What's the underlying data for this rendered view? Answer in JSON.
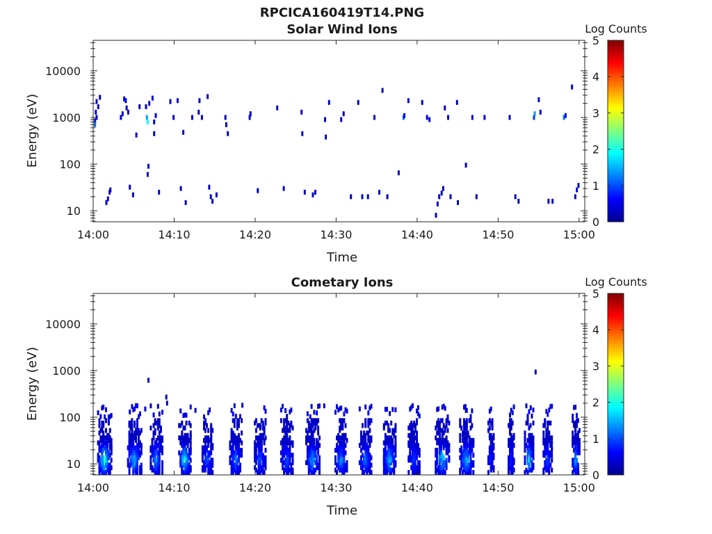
{
  "figure": {
    "title": "RPCICA160419T14.PNG"
  },
  "chart_data": [
    {
      "type": "heatmap",
      "title": "Solar Wind Ions",
      "xlabel": "Time",
      "ylabel": "Energy (eV)",
      "x_ticks": [
        "14:00",
        "14:10",
        "14:20",
        "14:30",
        "14:40",
        "14:50",
        "15:00"
      ],
      "x_range_minutes": [
        0,
        60.7
      ],
      "y_ticks": [
        "10",
        "100",
        "1000",
        "10000"
      ],
      "y_scale": "log",
      "y_range_ev": [
        5.8,
        45000
      ],
      "colorbar": {
        "label": "Log Counts",
        "ticks": [
          "0",
          "1",
          "2",
          "3",
          "4",
          "5"
        ],
        "range": [
          0,
          5
        ],
        "colormap": "jet"
      },
      "cells": [
        [
          0.1,
          850,
          0.7
        ],
        [
          0.1,
          700,
          1.2
        ],
        [
          0.2,
          1300,
          0.5
        ],
        [
          0.3,
          1000,
          0.4
        ],
        [
          0.3,
          2200,
          0.3
        ],
        [
          0.5,
          1700,
          0.4
        ],
        [
          0.7,
          2700,
          0.3
        ],
        [
          1.5,
          15,
          0.3
        ],
        [
          1.7,
          18,
          0.4
        ],
        [
          1.9,
          25,
          0.4
        ],
        [
          2.0,
          28,
          0.3
        ],
        [
          3.3,
          1000,
          0.3
        ],
        [
          3.5,
          1200,
          0.4
        ],
        [
          3.7,
          2500,
          0.5
        ],
        [
          3.9,
          2300,
          0.5
        ],
        [
          4.0,
          1600,
          0.3
        ],
        [
          4.2,
          1300,
          0.3
        ],
        [
          4.4,
          32,
          0.3
        ],
        [
          4.8,
          22,
          0.3
        ],
        [
          5.2,
          420,
          0.3
        ],
        [
          5.6,
          1700,
          0.3
        ],
        [
          6.4,
          1700,
          0.4
        ],
        [
          6.5,
          1000,
          1.4
        ],
        [
          6.6,
          800,
          1.9
        ],
        [
          6.6,
          60,
          0.4
        ],
        [
          6.7,
          90,
          0.3
        ],
        [
          6.8,
          2000,
          0.4
        ],
        [
          7.2,
          2600,
          0.5
        ],
        [
          7.4,
          800,
          0.3
        ],
        [
          7.4,
          450,
          0.3
        ],
        [
          7.6,
          1100,
          0.4
        ],
        [
          8.0,
          25,
          0.3
        ],
        [
          9.4,
          2200,
          0.3
        ],
        [
          9.8,
          1000,
          0.4
        ],
        [
          10.3,
          2300,
          0.4
        ],
        [
          10.7,
          30,
          0.3
        ],
        [
          11.0,
          480,
          0.3
        ],
        [
          11.3,
          15,
          0.3
        ],
        [
          12.1,
          1000,
          0.3
        ],
        [
          12.9,
          1300,
          0.3
        ],
        [
          13.0,
          2300,
          0.3
        ],
        [
          13.3,
          1000,
          0.4
        ],
        [
          14.0,
          2800,
          0.3
        ],
        [
          14.2,
          32,
          0.3
        ],
        [
          14.4,
          20,
          0.3
        ],
        [
          14.6,
          16,
          0.3
        ],
        [
          15.1,
          22,
          0.3
        ],
        [
          16.2,
          1000,
          0.3
        ],
        [
          16.3,
          700,
          0.3
        ],
        [
          16.5,
          450,
          0.3
        ],
        [
          19.2,
          1000,
          0.4
        ],
        [
          19.3,
          1200,
          0.3
        ],
        [
          20.2,
          27,
          0.3
        ],
        [
          22.6,
          1600,
          0.3
        ],
        [
          23.4,
          30,
          0.3
        ],
        [
          25.6,
          1300,
          0.3
        ],
        [
          25.7,
          450,
          0.3
        ],
        [
          26.0,
          25,
          0.3
        ],
        [
          27.0,
          22,
          0.3
        ],
        [
          27.3,
          25,
          0.3
        ],
        [
          28.5,
          900,
          0.4
        ],
        [
          28.6,
          380,
          0.3
        ],
        [
          29.0,
          2100,
          0.3
        ],
        [
          30.5,
          900,
          0.4
        ],
        [
          30.8,
          1200,
          0.3
        ],
        [
          31.7,
          20,
          0.3
        ],
        [
          32.6,
          2100,
          0.3
        ],
        [
          33.1,
          20,
          0.3
        ],
        [
          33.8,
          20,
          0.3
        ],
        [
          34.6,
          1000,
          0.4
        ],
        [
          35.2,
          25,
          0.3
        ],
        [
          35.6,
          3800,
          0.3
        ],
        [
          36.2,
          20,
          0.3
        ],
        [
          37.6,
          65,
          0.3
        ],
        [
          38.2,
          1000,
          1.1
        ],
        [
          38.3,
          1100,
          0.6
        ],
        [
          38.8,
          2300,
          0.3
        ],
        [
          40.5,
          2100,
          0.3
        ],
        [
          41.1,
          1000,
          0.5
        ],
        [
          41.4,
          900,
          0.4
        ],
        [
          42.2,
          8,
          0.3
        ],
        [
          42.4,
          14,
          0.3
        ],
        [
          42.6,
          20,
          0.4
        ],
        [
          42.9,
          24,
          0.3
        ],
        [
          43.1,
          30,
          0.3
        ],
        [
          43.3,
          1600,
          0.3
        ],
        [
          43.7,
          1000,
          0.4
        ],
        [
          44.0,
          20,
          0.3
        ],
        [
          44.8,
          2100,
          0.3
        ],
        [
          44.9,
          15,
          0.3
        ],
        [
          45.9,
          95,
          0.3
        ],
        [
          46.7,
          1000,
          0.3
        ],
        [
          47.2,
          20,
          0.3
        ],
        [
          48.2,
          1000,
          0.4
        ],
        [
          51.3,
          1000,
          0.3
        ],
        [
          52.0,
          20,
          0.3
        ],
        [
          52.4,
          16,
          0.3
        ],
        [
          54.3,
          1000,
          0.9
        ],
        [
          54.4,
          1200,
          1.4
        ],
        [
          54.9,
          2400,
          0.3
        ],
        [
          55.1,
          1300,
          0.3
        ],
        [
          56.1,
          16,
          0.3
        ],
        [
          56.6,
          16,
          0.3
        ],
        [
          58.0,
          1000,
          1.2
        ],
        [
          58.2,
          1100,
          0.5
        ],
        [
          59.0,
          4500,
          0.3
        ],
        [
          59.4,
          20,
          0.3
        ],
        [
          59.6,
          28,
          0.4
        ],
        [
          59.8,
          35,
          0.3
        ]
      ]
    },
    {
      "type": "heatmap",
      "title": "Cometary Ions",
      "xlabel": "Time",
      "ylabel": "Energy (eV)",
      "x_ticks": [
        "14:00",
        "14:10",
        "14:20",
        "14:30",
        "14:40",
        "14:50",
        "15:00"
      ],
      "x_range_minutes": [
        0,
        60.7
      ],
      "y_ticks": [
        "10",
        "100",
        "1000",
        "10000"
      ],
      "y_scale": "log",
      "y_range_ev": [
        5.8,
        45000
      ],
      "colorbar": {
        "label": "Log Counts",
        "ticks": [
          "0",
          "1",
          "2",
          "3",
          "4",
          "5"
        ],
        "range": [
          0,
          5
        ],
        "colormap": "jet"
      },
      "clusters": [
        {
          "t": 1.3,
          "w": 1.8,
          "peak": 2.1
        },
        {
          "t": 5.0,
          "w": 1.8,
          "peak": 1.6
        },
        {
          "t": 7.7,
          "w": 1.6,
          "peak": 1.3
        },
        {
          "t": 11.2,
          "w": 1.6,
          "peak": 2.0
        },
        {
          "t": 14.0,
          "w": 1.4,
          "peak": 1.0
        },
        {
          "t": 17.5,
          "w": 1.6,
          "peak": 1.1
        },
        {
          "t": 20.5,
          "w": 1.5,
          "peak": 0.9
        },
        {
          "t": 23.8,
          "w": 1.6,
          "peak": 0.9
        },
        {
          "t": 27.0,
          "w": 1.8,
          "peak": 1.5
        },
        {
          "t": 30.5,
          "w": 1.6,
          "peak": 1.3
        },
        {
          "t": 33.5,
          "w": 1.6,
          "peak": 1.1
        },
        {
          "t": 36.5,
          "w": 1.6,
          "peak": 1.6
        },
        {
          "t": 39.5,
          "w": 1.5,
          "peak": 0.9
        },
        {
          "t": 43.0,
          "w": 1.8,
          "peak": 1.7
        },
        {
          "t": 46.0,
          "w": 1.8,
          "peak": 1.6
        },
        {
          "t": 49.0,
          "w": 0.8,
          "peak": 0.6
        },
        {
          "t": 51.5,
          "w": 0.8,
          "peak": 0.6
        },
        {
          "t": 53.7,
          "w": 1.2,
          "peak": 1.8
        },
        {
          "t": 56.0,
          "w": 1.2,
          "peak": 0.9
        },
        {
          "t": 59.5,
          "w": 1.0,
          "peak": 1.6
        }
      ],
      "cells": [
        [
          6.7,
          620,
          0.3
        ],
        [
          8.9,
          270,
          0.3
        ],
        [
          9.0,
          200,
          0.3
        ],
        [
          54.5,
          930,
          0.3
        ],
        [
          4.4,
          130,
          0.5
        ],
        [
          6.3,
          150,
          0.3
        ],
        [
          12.5,
          140,
          0.3
        ],
        [
          18.3,
          180,
          0.3
        ],
        [
          28.4,
          175,
          0.3
        ],
        [
          40.0,
          160,
          0.3
        ],
        [
          45.9,
          140,
          0.3
        ],
        [
          53.9,
          160,
          0.3
        ]
      ]
    }
  ]
}
